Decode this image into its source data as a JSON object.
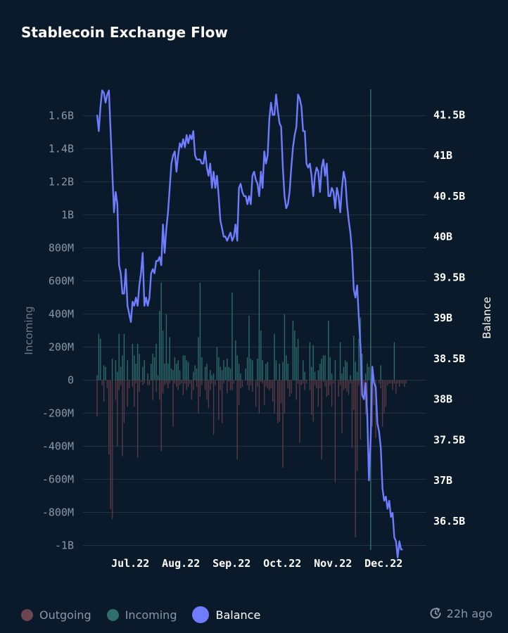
{
  "title": "Stablecoin Exchange Flow",
  "legend": {
    "outgoing": "Outgoing",
    "incoming": "Incoming",
    "balance": "Balance"
  },
  "updated": "22h ago",
  "colors": {
    "outgoing": "#5a3944",
    "outgoing_dot": "#6b4550",
    "incoming": "#2c6a69",
    "incoming_dot": "#2f6e6c",
    "balance": "#6f7cff",
    "grid": "#1d3446",
    "cursor": "#2d6b66"
  },
  "chart_data": {
    "type": "bar+line",
    "title": "Stablecoin Exchange Flow",
    "y_left": {
      "label": "Incoming",
      "range": [
        -1000000000,
        1800000000
      ],
      "ticks": [
        -1000000000,
        -800000000,
        -600000000,
        -400000000,
        -200000000,
        0,
        200000000,
        400000000,
        600000000,
        800000000,
        1000000000,
        1200000000,
        1400000000,
        1600000000
      ],
      "tick_labels": [
        "-1B",
        "-800M",
        "-600M",
        "-400M",
        "-200M",
        "0",
        "200M",
        "400M",
        "600M",
        "800M",
        "1B",
        "1.2B",
        "1.4B",
        "1.6B"
      ]
    },
    "y_right": {
      "label": "Balance",
      "range": [
        36000000000,
        42000000000
      ],
      "ticks": [
        36500000000,
        37000000000,
        37500000000,
        38000000000,
        38500000000,
        39000000000,
        39500000000,
        40000000000,
        40500000000,
        41000000000,
        41500000000
      ],
      "tick_labels": [
        "36.5B",
        "37B",
        "37.5B",
        "38B",
        "38.5B",
        "39B",
        "39.5B",
        "40B",
        "40.5B",
        "41B",
        "41.5B"
      ]
    },
    "x": {
      "range_days": [
        0,
        181
      ],
      "tick_days": [
        18,
        48,
        78,
        108,
        138,
        168
      ],
      "tick_labels": [
        "Jul.22",
        "Aug.22",
        "Sep.22",
        "Oct.22",
        "Nov.22",
        "Dec.22"
      ]
    },
    "cursor_day": 162,
    "series": [
      {
        "name": "Incoming",
        "unit": "USD",
        "values": [
          30,
          280,
          250,
          0,
          90,
          80,
          0,
          0,
          0,
          130,
          0,
          120,
          50,
          280,
          80,
          150,
          280,
          0,
          120,
          0,
          0,
          220,
          150,
          100,
          220,
          160,
          0,
          80,
          120,
          0,
          40,
          0,
          100,
          160,
          140,
          220,
          30,
          420,
          590,
          300,
          100,
          400,
          100,
          260,
          70,
          60,
          140,
          100,
          120,
          60,
          0,
          150,
          150,
          120,
          110,
          0,
          0,
          50,
          90,
          70,
          260,
          590,
          140,
          0,
          80,
          100,
          0,
          60,
          30,
          40,
          0,
          200,
          140,
          80,
          60,
          120,
          80,
          130,
          80,
          70,
          530,
          0,
          240,
          150,
          100,
          40,
          0,
          0,
          70,
          140,
          390,
          130,
          120,
          0,
          0,
          130,
          670,
          300,
          120,
          0,
          100,
          110,
          0,
          0,
          0,
          280,
          120,
          0,
          100,
          0,
          110,
          400,
          150,
          100,
          0,
          0,
          360,
          300,
          200,
          250,
          0,
          0,
          120,
          50,
          0,
          0,
          230,
          80,
          210,
          50,
          0,
          60,
          100,
          130,
          150,
          150,
          0,
          360,
          140,
          40,
          0,
          120,
          0,
          0,
          230,
          40,
          80,
          120,
          110,
          0,
          30,
          0,
          270,
          110,
          50,
          250,
          380,
          160,
          0,
          40,
          100,
          80,
          0,
          0,
          0,
          0,
          0,
          0,
          90,
          0,
          0,
          0,
          0,
          0,
          0,
          0,
          230,
          0,
          0,
          0,
          0,
          0
        ],
        "scale": 1000000
      },
      {
        "name": "Outgoing",
        "unit": "USD",
        "values": [
          -220,
          0,
          0,
          -30,
          -130,
          0,
          -50,
          -450,
          -780,
          -840,
          0,
          -120,
          -400,
          -60,
          -30,
          -460,
          -260,
          0,
          -160,
          -50,
          0,
          -40,
          -160,
          -20,
          -470,
          -70,
          -10,
          -30,
          -20,
          0,
          -30,
          -30,
          0,
          -120,
          0,
          -70,
          0,
          -120,
          -430,
          -80,
          -30,
          -20,
          -50,
          -20,
          0,
          -280,
          -20,
          -40,
          -60,
          -30,
          -20,
          -90,
          -20,
          -60,
          -40,
          -20,
          -120,
          -60,
          0,
          -40,
          -200,
          -100,
          -30,
          0,
          -60,
          -120,
          -170,
          -60,
          -20,
          -330,
          -30,
          0,
          -240,
          -60,
          -260,
          -20,
          0,
          -80,
          -10,
          -60,
          -60,
          -20,
          0,
          -480,
          -150,
          -50,
          -40,
          0,
          0,
          -30,
          -60,
          -30,
          -70,
          0,
          -160,
          -40,
          -200,
          -10,
          -20,
          -150,
          -40,
          -50,
          -60,
          -50,
          -130,
          -200,
          0,
          -260,
          -250,
          -140,
          -530,
          -200,
          0,
          -50,
          -100,
          -80,
          0,
          0,
          -120,
          -20,
          -380,
          -30,
          -20,
          -60,
          -20,
          0,
          -60,
          -210,
          -250,
          -30,
          -50,
          -160,
          -50,
          -480,
          -10,
          -40,
          -100,
          -90,
          -30,
          -160,
          -20,
          -620,
          0,
          -100,
          -30,
          -320,
          -60,
          -50,
          -70,
          -90,
          -20,
          -410,
          -180,
          -950,
          -550,
          -30,
          -360,
          -30,
          -100,
          -210,
          -140,
          0,
          -60,
          -280,
          -150,
          -350,
          0,
          -20,
          -50,
          -280,
          -200,
          -160,
          -30,
          -20,
          -20,
          -60,
          -20,
          -80,
          -20,
          -40,
          -20,
          -20,
          -40,
          -20
        ],
        "scale": 1000000
      },
      {
        "name": "Balance",
        "unit": "USD",
        "values": [
          41.5,
          41.3,
          41.6,
          41.8,
          41.77,
          41.65,
          41.75,
          41.8,
          41.3,
          40.8,
          40.3,
          40.55,
          40.4,
          39.65,
          39.55,
          39.3,
          39.3,
          39.6,
          39.15,
          39.05,
          38.95,
          39.2,
          39.15,
          39.25,
          39.15,
          39.4,
          39.55,
          39.8,
          39.15,
          39.25,
          39.15,
          39.25,
          39.55,
          39.6,
          39.55,
          39.7,
          39.7,
          39.75,
          39.65,
          40.15,
          39.8,
          40.1,
          40.3,
          40.6,
          40.9,
          41.0,
          41.05,
          40.8,
          41.0,
          41.15,
          41.1,
          41.2,
          41.1,
          41.25,
          41.15,
          41.25,
          41.2,
          41.3,
          41.0,
          40.95,
          40.95,
          40.95,
          40.9,
          40.9,
          41.05,
          40.85,
          40.75,
          40.9,
          40.6,
          40.8,
          40.6,
          40.75,
          40.5,
          40.2,
          40.1,
          40.0,
          40.0,
          39.95,
          40.0,
          40.05,
          39.95,
          40.0,
          40.15,
          39.95,
          40.6,
          40.65,
          40.55,
          40.5,
          40.5,
          40.4,
          40.5,
          40.4,
          40.75,
          40.8,
          40.7,
          40.65,
          40.5,
          40.8,
          40.6,
          41.05,
          40.9,
          41.0,
          41.45,
          41.65,
          41.5,
          41.5,
          41.75,
          41.55,
          41.4,
          41.35,
          40.85,
          40.5,
          40.35,
          40.4,
          40.55,
          40.85,
          41.1,
          41.25,
          41.35,
          41.75,
          41.7,
          41.6,
          41.3,
          41.3,
          40.9,
          40.85,
          40.9,
          40.75,
          40.5,
          40.75,
          40.85,
          40.8,
          40.55,
          40.85,
          40.95,
          40.75,
          40.9,
          40.5,
          40.5,
          40.6,
          40.55,
          40.35,
          40.6,
          40.5,
          40.3,
          40.6,
          40.8,
          40.7,
          40.4,
          40.2,
          40.05,
          39.8,
          39.35,
          39.25,
          39.4,
          39.0,
          38.65,
          38.05,
          38.0,
          38.2,
          37.8,
          37.0,
          37.5,
          38.4,
          38.2,
          38.15,
          37.7,
          37.6,
          37.4,
          36.9,
          36.75,
          36.8,
          36.65,
          36.75,
          36.55,
          36.6,
          36.3,
          36.25,
          36.05,
          36.25,
          36.15,
          36.15
        ],
        "scale": 1000000000
      }
    ]
  }
}
